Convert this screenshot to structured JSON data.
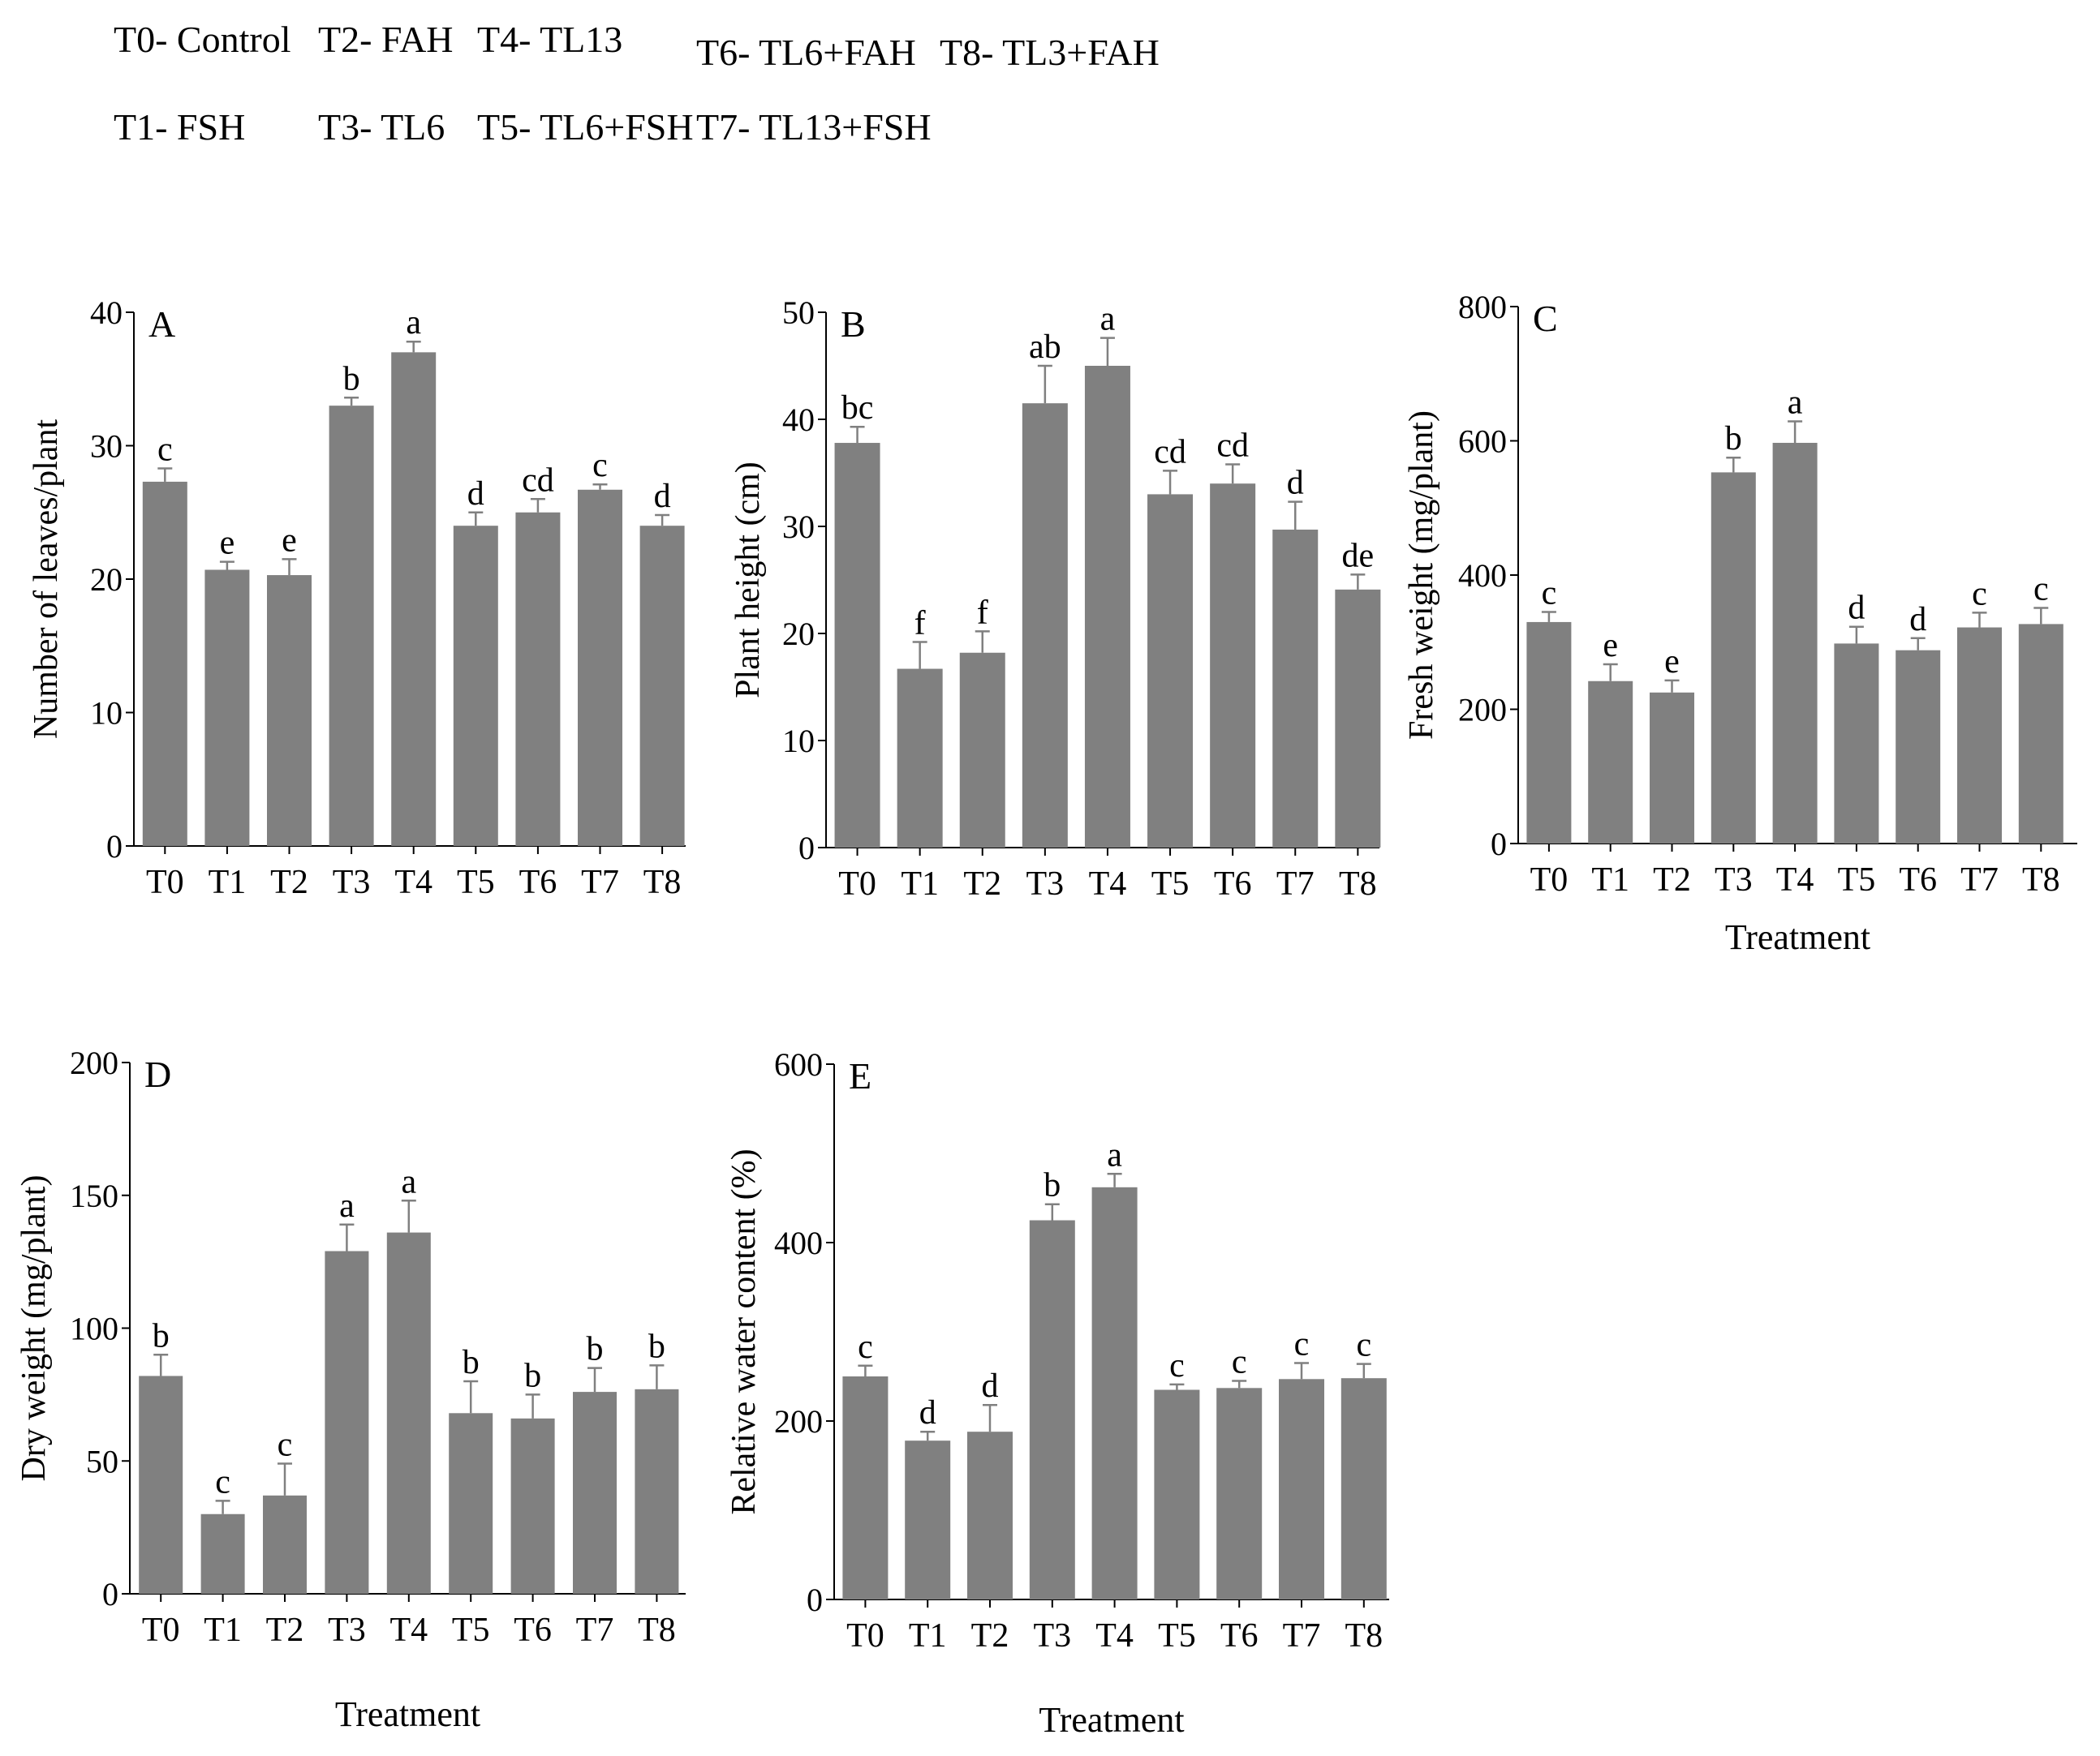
{
  "legend": [
    {
      "code": "T0",
      "label": "T0- Control"
    },
    {
      "code": "T1",
      "label": "T1- FSH"
    },
    {
      "code": "T2",
      "label": "T2- FAH"
    },
    {
      "code": "T3",
      "label": "T3- TL6"
    },
    {
      "code": "T4",
      "label": "T4- TL13"
    },
    {
      "code": "T5",
      "label": "T5- TL6+FSH"
    },
    {
      "code": "T6",
      "label": "T6- TL6+FAH"
    },
    {
      "code": "T7",
      "label": "T7- TL13+FSH"
    },
    {
      "code": "T8",
      "label": "T8- TL3+FAH"
    }
  ],
  "colors": {
    "bar": "#808080",
    "axis": "#000000"
  },
  "chart_data": [
    {
      "id": "A",
      "panel_label": "A",
      "type": "bar",
      "title": "",
      "xlabel": "",
      "ylabel": "Number of leaves/plant",
      "categories": [
        "T0",
        "T1",
        "T2",
        "T3",
        "T4",
        "T5",
        "T6",
        "T7",
        "T8"
      ],
      "values": [
        27.3,
        20.7,
        20.3,
        33.0,
        37.0,
        24.0,
        25.0,
        26.7,
        24.0
      ],
      "errors": [
        1.0,
        0.6,
        1.2,
        0.6,
        0.8,
        1.0,
        1.0,
        0.4,
        0.8
      ],
      "letters": [
        "c",
        "e",
        "e",
        "b",
        "a",
        "d",
        "cd",
        "c",
        "d"
      ],
      "ylim": [
        0,
        40
      ],
      "yticks": [
        0,
        10,
        20,
        30,
        40
      ]
    },
    {
      "id": "B",
      "panel_label": "B",
      "type": "bar",
      "title": "",
      "xlabel": "",
      "ylabel": "Plant height (cm)",
      "categories": [
        "T0",
        "T1",
        "T2",
        "T3",
        "T4",
        "T5",
        "T6",
        "T7",
        "T8"
      ],
      "values": [
        37.8,
        16.7,
        18.2,
        41.5,
        45.0,
        33.0,
        34.0,
        29.7,
        24.1
      ],
      "errors": [
        1.5,
        2.5,
        2.0,
        3.5,
        2.6,
        2.2,
        1.8,
        2.6,
        1.4
      ],
      "letters": [
        "bc",
        "f",
        "f",
        "ab",
        "a",
        "cd",
        "cd",
        "d",
        "de"
      ],
      "ylim": [
        0,
        50
      ],
      "yticks": [
        0,
        10,
        20,
        30,
        40,
        50
      ]
    },
    {
      "id": "C",
      "panel_label": "C",
      "type": "bar",
      "title": "",
      "xlabel": "Treatment",
      "ylabel": "Fresh weight (mg/plant)",
      "categories": [
        "T0",
        "T1",
        "T2",
        "T3",
        "T4",
        "T5",
        "T6",
        "T7",
        "T8"
      ],
      "values": [
        330,
        242,
        225,
        553,
        597,
        298,
        288,
        322,
        327
      ],
      "errors": [
        15,
        25,
        18,
        22,
        32,
        25,
        18,
        22,
        24
      ],
      "letters": [
        "c",
        "e",
        "e",
        "b",
        "a",
        "d",
        "d",
        "c",
        "c"
      ],
      "ylim": [
        0,
        800
      ],
      "yticks": [
        0,
        200,
        400,
        600,
        800
      ]
    },
    {
      "id": "D",
      "panel_label": "D",
      "type": "bar",
      "title": "",
      "xlabel": "Treatment",
      "ylabel": "Dry weight (mg/plant)",
      "categories": [
        "T0",
        "T1",
        "T2",
        "T3",
        "T4",
        "T5",
        "T6",
        "T7",
        "T8"
      ],
      "values": [
        82,
        30,
        37,
        129,
        136,
        68,
        66,
        76,
        77
      ],
      "errors": [
        8,
        5,
        12,
        10,
        12,
        12,
        9,
        9,
        9
      ],
      "letters": [
        "b",
        "c",
        "c",
        "a",
        "a",
        "b",
        "b",
        "b",
        "b"
      ],
      "ylim": [
        0,
        200
      ],
      "yticks": [
        0,
        50,
        100,
        150,
        200
      ]
    },
    {
      "id": "E",
      "panel_label": "E",
      "type": "bar",
      "title": "",
      "xlabel": "Treatment",
      "ylabel": "Relative water content (%)",
      "categories": [
        "T0",
        "T1",
        "T2",
        "T3",
        "T4",
        "T5",
        "T6",
        "T7",
        "T8"
      ],
      "values": [
        250,
        178,
        188,
        425,
        462,
        235,
        237,
        247,
        248
      ],
      "errors": [
        12,
        10,
        30,
        18,
        15,
        6,
        8,
        18,
        16
      ],
      "letters": [
        "c",
        "d",
        "d",
        "b",
        "a",
        "c",
        "c",
        "c",
        "c"
      ],
      "ylim": [
        0,
        600
      ],
      "yticks": [
        0,
        200,
        400,
        600
      ]
    }
  ]
}
